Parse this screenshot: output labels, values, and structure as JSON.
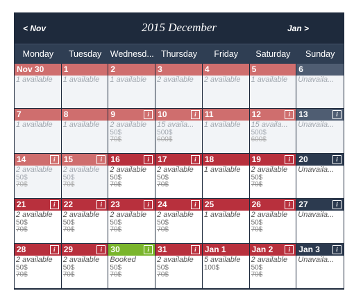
{
  "nav": {
    "prev": "< Nov",
    "next": "Jan >",
    "title": "2015 December"
  },
  "weekdays": [
    "Monday",
    "Tuesday",
    "Wednesd...",
    "Thursday",
    "Friday",
    "Saturday",
    "Sunday"
  ],
  "colors": {
    "header": "#1e2a3c",
    "red_past": "#cf6e6e",
    "red_current": "#b8303d",
    "dark": "#2c3a4f",
    "booked_green": "#7ab52c"
  },
  "cells": [
    {
      "day": "Nov 30",
      "status": "1 available",
      "price": "",
      "old": "",
      "info": false,
      "hdr": "r-past",
      "past": true
    },
    {
      "day": "1",
      "status": "1 available",
      "price": "",
      "old": "",
      "info": false,
      "hdr": "r-past",
      "past": true
    },
    {
      "day": "2",
      "status": "1 available",
      "price": "",
      "old": "",
      "info": false,
      "hdr": "r-past",
      "past": true
    },
    {
      "day": "3",
      "status": "2 available",
      "price": "",
      "old": "",
      "info": false,
      "hdr": "r-past",
      "past": true
    },
    {
      "day": "4",
      "status": "2 available",
      "price": "",
      "old": "",
      "info": false,
      "hdr": "r-past",
      "past": true
    },
    {
      "day": "5",
      "status": "1 available",
      "price": "",
      "old": "",
      "info": false,
      "hdr": "r-past",
      "past": true
    },
    {
      "day": "6",
      "status": "Unavaila...",
      "price": "",
      "old": "",
      "info": false,
      "hdr": "d-past",
      "past": true
    },
    {
      "day": "7",
      "status": "1 available",
      "price": "",
      "old": "",
      "info": false,
      "hdr": "r-past",
      "past": true
    },
    {
      "day": "8",
      "status": "1 available",
      "price": "",
      "old": "",
      "info": false,
      "hdr": "r-past",
      "past": true
    },
    {
      "day": "9",
      "status": "2 available",
      "price": "50$",
      "old": "70$",
      "info": true,
      "hdr": "r-past",
      "past": true
    },
    {
      "day": "10",
      "status": "15 availa...",
      "price": "500$",
      "old": "600$",
      "info": true,
      "hdr": "r-past",
      "past": true
    },
    {
      "day": "11",
      "status": "1 available",
      "price": "",
      "old": "",
      "info": false,
      "hdr": "r-past",
      "past": true
    },
    {
      "day": "12",
      "status": "15 availa...",
      "price": "500$",
      "old": "600$",
      "info": true,
      "hdr": "r-past",
      "past": true
    },
    {
      "day": "13",
      "status": "Unavaila...",
      "price": "",
      "old": "",
      "info": true,
      "hdr": "d-past",
      "past": true
    },
    {
      "day": "14",
      "status": "2 available",
      "price": "50$",
      "old": "70$",
      "info": true,
      "hdr": "r-past",
      "past": true
    },
    {
      "day": "15",
      "status": "2 available",
      "price": "50$",
      "old": "70$",
      "info": true,
      "hdr": "r-past",
      "past": true
    },
    {
      "day": "16",
      "status": "2 available",
      "price": "50$",
      "old": "70$",
      "info": true,
      "hdr": "r-cur",
      "past": false
    },
    {
      "day": "17",
      "status": "2 available",
      "price": "50$",
      "old": "70$",
      "info": true,
      "hdr": "r-cur",
      "past": false
    },
    {
      "day": "18",
      "status": "1 available",
      "price": "",
      "old": "",
      "info": false,
      "hdr": "r-cur",
      "past": false
    },
    {
      "day": "19",
      "status": "2 available",
      "price": "50$",
      "old": "70$",
      "info": true,
      "hdr": "r-cur",
      "past": false
    },
    {
      "day": "20",
      "status": "Unavaila...",
      "price": "",
      "old": "",
      "info": true,
      "hdr": "d-cur",
      "past": false
    },
    {
      "day": "21",
      "status": "2 available",
      "price": "50$",
      "old": "70$",
      "info": true,
      "hdr": "r-cur",
      "past": false
    },
    {
      "day": "22",
      "status": "2 available",
      "price": "50$",
      "old": "70$",
      "info": true,
      "hdr": "r-cur",
      "past": false
    },
    {
      "day": "23",
      "status": "2 available",
      "price": "50$",
      "old": "70$",
      "info": true,
      "hdr": "r-cur",
      "past": false
    },
    {
      "day": "24",
      "status": "2 available",
      "price": "50$",
      "old": "70$",
      "info": true,
      "hdr": "r-cur",
      "past": false
    },
    {
      "day": "25",
      "status": "1 available",
      "price": "",
      "old": "",
      "info": false,
      "hdr": "r-cur",
      "past": false
    },
    {
      "day": "26",
      "status": "2 available",
      "price": "50$",
      "old": "70$",
      "info": true,
      "hdr": "r-cur",
      "past": false
    },
    {
      "day": "27",
      "status": "Unavaila...",
      "price": "",
      "old": "",
      "info": true,
      "hdr": "d-cur",
      "past": false
    },
    {
      "day": "28",
      "status": "2 available",
      "price": "50$",
      "old": "70$",
      "info": true,
      "hdr": "r-cur",
      "past": false
    },
    {
      "day": "29",
      "status": "2 available",
      "price": "50$",
      "old": "70$",
      "info": true,
      "hdr": "r-cur",
      "past": false
    },
    {
      "day": "30",
      "status": "Booked",
      "price": "50$",
      "old": "70$",
      "info": true,
      "hdr": "g",
      "past": false
    },
    {
      "day": "31",
      "status": "2 available",
      "price": "50$",
      "old": "70$",
      "info": true,
      "hdr": "r-cur",
      "past": false
    },
    {
      "day": "Jan 1",
      "status": "5 available",
      "price": "100$",
      "old": "",
      "info": false,
      "hdr": "r-cur",
      "past": false
    },
    {
      "day": "Jan 2",
      "status": "2 available",
      "price": "50$",
      "old": "70$",
      "info": true,
      "hdr": "r-cur",
      "past": false
    },
    {
      "day": "Jan 3",
      "status": "Unavaila...",
      "price": "",
      "old": "",
      "info": true,
      "hdr": "d-cur",
      "past": false
    }
  ]
}
